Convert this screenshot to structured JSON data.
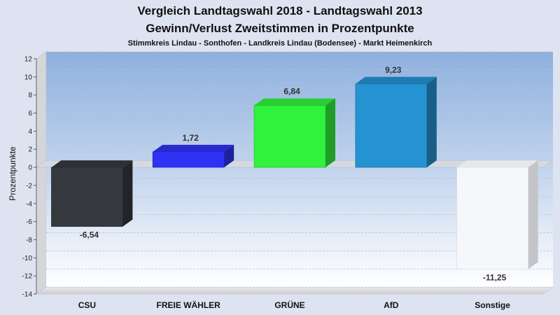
{
  "chart_data": {
    "type": "bar",
    "title": "Vergleich Landtagswahl 2018 - Landtagswahl 2013",
    "subtitle": "Gewinn/Verlust Zweitstimmen in Prozentpunkte",
    "subsubtitle": "Stimmkreis Lindau - Sonthofen - Landkreis Lindau (Bodensee) - Markt Heimenkirch",
    "ylabel": "Prozentpunkte",
    "xlabel": "",
    "ylim": [
      -14,
      12
    ],
    "yticks": [
      12,
      10,
      8,
      6,
      4,
      2,
      0,
      -2,
      -4,
      -6,
      -8,
      -10,
      -12,
      -14
    ],
    "grid": true,
    "categories": [
      "CSU",
      "FREIE WÄHLER",
      "GRÜNE",
      "AfD",
      "Sonstige"
    ],
    "values": [
      -6.54,
      1.72,
      6.84,
      9.23,
      -11.25
    ],
    "value_labels": [
      "-6,54",
      "1,72",
      "6,84",
      "9,23",
      "-11,25"
    ],
    "colors": [
      "#35383d",
      "#2e32f3",
      "#2ff23c",
      "#2592d1",
      "#f6f7fb"
    ]
  }
}
